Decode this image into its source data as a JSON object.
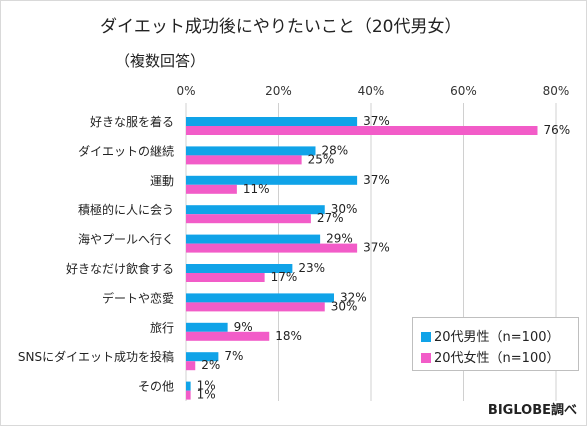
{
  "colors": {
    "male": "#10A3E8",
    "female": "#F25CC8",
    "grid": "#d0d0d0"
  },
  "credit": "BIGLOBE調べ",
  "chart_data": {
    "type": "bar",
    "orientation": "horizontal",
    "title": "ダイエット成功後にやりたいこと（20代男女）",
    "subtitle": "（複数回答）",
    "xlim": [
      0,
      80
    ],
    "xticks": [
      "0%",
      "20%",
      "40%",
      "60%",
      "80%"
    ],
    "categories": [
      "好きな服を着る",
      "ダイエットの継続",
      "運動",
      "積極的に人に会う",
      "海やプールへ行く",
      "好きなだけ飲食する",
      "デートや恋愛",
      "旅行",
      "SNSにダイエット成功を投稿",
      "その他"
    ],
    "series": [
      {
        "name": "20代男性（n=100）",
        "values": [
          37,
          28,
          37,
          30,
          29,
          23,
          32,
          9,
          7,
          1
        ],
        "labels": [
          "37%",
          "28%",
          "37%",
          "30%",
          "29%",
          "23%",
          "32%",
          "9%",
          "7%",
          "1%"
        ]
      },
      {
        "name": "20代女性（n=100）",
        "values": [
          76,
          25,
          11,
          27,
          37,
          17,
          30,
          18,
          2,
          1
        ],
        "labels": [
          "76%",
          "25%",
          "11%",
          "27%",
          "37%",
          "17%",
          "30%",
          "18%",
          "2%",
          "1%"
        ]
      }
    ],
    "grid": true,
    "legend": "bottom-right"
  }
}
